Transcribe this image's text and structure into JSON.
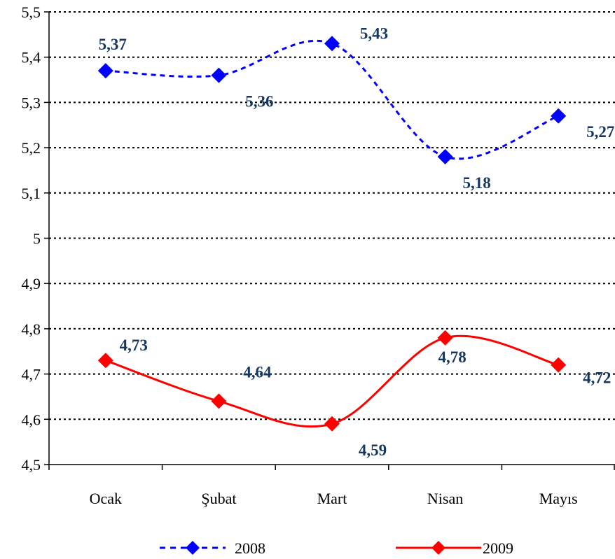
{
  "chart_data": {
    "type": "line",
    "title": "",
    "xlabel": "",
    "ylabel": "",
    "categories": [
      "Ocak",
      "Şubat",
      "Mart",
      "Nisan",
      "Mayıs"
    ],
    "ylim": [
      4.5,
      5.5
    ],
    "y_ticks": [
      "4,5",
      "4,6",
      "4,7",
      "4,8",
      "4,9",
      "5",
      "5,1",
      "5,2",
      "5,3",
      "5,4",
      "5,5"
    ],
    "grid": "horizontal dotted",
    "legend_position": "bottom",
    "series": [
      {
        "name": "2008",
        "values": [
          5.37,
          5.36,
          5.43,
          5.18,
          5.27
        ],
        "labels": [
          "5,37",
          "5,36",
          "5,43",
          "5,18",
          "5,27"
        ],
        "color": "#0000FF",
        "line_style": "dashed",
        "marker": "diamond"
      },
      {
        "name": "2009",
        "values": [
          4.73,
          4.64,
          4.59,
          4.78,
          4.72
        ],
        "labels": [
          "4,73",
          "4,64",
          "4,59",
          "4,78",
          "4,72"
        ],
        "color": "#FF0000",
        "line_style": "solid",
        "marker": "diamond"
      }
    ],
    "label_color": "#17375E"
  }
}
